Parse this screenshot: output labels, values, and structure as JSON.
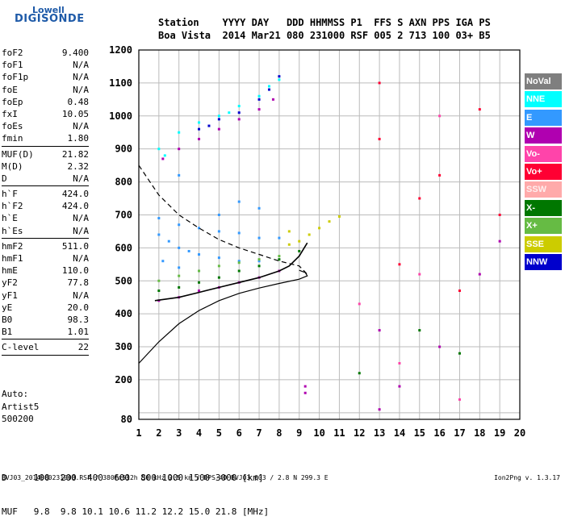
{
  "logo": {
    "line1": "Lowell",
    "line2": "DIGISONDE"
  },
  "header": {
    "labels": "Station    YYYY DAY   DDD HHMMSS P1  FFS S AXN PPS IGA PS",
    "values": "Boa Vista  2014 Mar21 080 231000 RSF 005 2 713 100 03+ B5"
  },
  "params": [
    {
      "k": "foF2",
      "v": "9.400"
    },
    {
      "k": "foF1",
      "v": "N/A"
    },
    {
      "k": "foF1p",
      "v": "N/A"
    },
    {
      "k": "foE",
      "v": "N/A"
    },
    {
      "k": "foEp",
      "v": "0.48"
    },
    {
      "k": "fxI",
      "v": "10.05"
    },
    {
      "k": "foEs",
      "v": "N/A"
    },
    {
      "k": "fmin",
      "v": "1.80"
    },
    {
      "sep": true
    },
    {
      "k": "MUF(D)",
      "v": "21.82"
    },
    {
      "k": "M(D)",
      "v": "2.32"
    },
    {
      "k": "D",
      "v": "N/A"
    },
    {
      "sep": true
    },
    {
      "k": "h`F",
      "v": "424.0"
    },
    {
      "k": "h`F2",
      "v": "424.0"
    },
    {
      "k": "h`E",
      "v": "N/A"
    },
    {
      "k": "h`Es",
      "v": "N/A"
    },
    {
      "sep": true
    },
    {
      "k": "hmF2",
      "v": "511.0"
    },
    {
      "k": "hmF1",
      "v": "N/A"
    },
    {
      "k": "hmE",
      "v": "110.0"
    },
    {
      "k": "yF2",
      "v": "77.8"
    },
    {
      "k": "yF1",
      "v": "N/A"
    },
    {
      "k": "yE",
      "v": "20.0"
    },
    {
      "k": "B0",
      "v": "98.3"
    },
    {
      "k": "B1",
      "v": "1.01"
    },
    {
      "sep": true
    },
    {
      "k": "C-level",
      "v": "22"
    },
    {
      "sep": true
    }
  ],
  "auto": {
    "line1": "Auto:",
    "line2": "Artist5",
    "line3": "500200"
  },
  "legend": [
    {
      "label": "NoVal",
      "color": "#7f7f7f"
    },
    {
      "label": "NNE",
      "color": "#00ffff"
    },
    {
      "label": "E",
      "color": "#3399ff"
    },
    {
      "label": "W",
      "color": "#b000b0"
    },
    {
      "label": "Vo-",
      "color": "#ff44aa"
    },
    {
      "label": "Vo+",
      "color": "#ff0033"
    },
    {
      "label": "SSW",
      "color": "#ffaaaa"
    },
    {
      "label": "X-",
      "color": "#007700"
    },
    {
      "label": "X+",
      "color": "#66bb44"
    },
    {
      "label": "SSE",
      "color": "#cccc00"
    },
    {
      "label": "NNW",
      "color": "#0000cc"
    }
  ],
  "bottom": {
    "line1": "D     100  200  400  600  800 1000 1500 3000 [km]",
    "line2": "MUF   9.8  9.8 10.1 10.6 11.2 12.2 15.0 21.8 [MHz]"
  },
  "footer": {
    "left": "BVJ03_2014080231000.RSF / 380fx512h 50 kHz 2.5 km / DPS-4D BVJ03 003 / 2.8 N 299.3 E",
    "right": "Ion2Png v. 1.3.17"
  },
  "chart_data": {
    "type": "scatter",
    "xlim": [
      1,
      20
    ],
    "ylim": [
      80,
      1200
    ],
    "xticks": [
      1,
      2,
      3,
      4,
      5,
      6,
      7,
      8,
      9,
      10,
      11,
      12,
      13,
      14,
      15,
      16,
      17,
      18,
      19,
      20
    ],
    "yticks": [
      80,
      100,
      200,
      300,
      400,
      500,
      600,
      700,
      800,
      900,
      1000,
      1100,
      1200
    ],
    "ytick_labels": [
      "80",
      "",
      "200",
      "300",
      "400",
      "500",
      "600",
      "700",
      "800",
      "900",
      "1000",
      "1100",
      "1200"
    ],
    "grid": true,
    "legend_position": "right",
    "profile_solid": [
      [
        1,
        250
      ],
      [
        2,
        315
      ],
      [
        3,
        370
      ],
      [
        4,
        410
      ],
      [
        5,
        440
      ],
      [
        6,
        462
      ],
      [
        7,
        478
      ],
      [
        8,
        492
      ],
      [
        9,
        505
      ],
      [
        9.4,
        515
      ],
      [
        9.3,
        525
      ],
      [
        9,
        532
      ]
    ],
    "profile_dashed": [
      [
        1,
        850
      ],
      [
        2,
        760
      ],
      [
        3,
        700
      ],
      [
        4,
        660
      ],
      [
        5,
        625
      ],
      [
        6,
        600
      ],
      [
        7,
        580
      ],
      [
        8,
        560
      ],
      [
        9,
        545
      ],
      [
        9.4,
        520
      ]
    ],
    "trace_ordinary": [
      [
        1.8,
        440
      ],
      [
        3,
        450
      ],
      [
        4,
        465
      ],
      [
        5,
        480
      ],
      [
        6,
        495
      ],
      [
        7,
        510
      ],
      [
        8,
        530
      ],
      [
        8.5,
        545
      ],
      [
        9,
        575
      ],
      [
        9.4,
        615
      ]
    ],
    "series": [
      {
        "name": "NNE",
        "color": "#00ffff",
        "points": [
          [
            2,
            900
          ],
          [
            3,
            950
          ],
          [
            4,
            980
          ],
          [
            5,
            1000
          ],
          [
            6,
            1030
          ],
          [
            7,
            1060
          ],
          [
            7.5,
            1090
          ],
          [
            8,
            1110
          ],
          [
            2.3,
            880
          ],
          [
            5.5,
            1010
          ]
        ]
      },
      {
        "name": "E",
        "color": "#3399ff",
        "points": [
          [
            2,
            640
          ],
          [
            2.5,
            620
          ],
          [
            3,
            600
          ],
          [
            3.5,
            590
          ],
          [
            4,
            580
          ],
          [
            5,
            570
          ],
          [
            6,
            560
          ],
          [
            7,
            560
          ],
          [
            2,
            690
          ],
          [
            3,
            670
          ],
          [
            4,
            660
          ],
          [
            5,
            650
          ],
          [
            6,
            645
          ],
          [
            7,
            630
          ],
          [
            8,
            630
          ],
          [
            2.2,
            560
          ],
          [
            3,
            540
          ],
          [
            4,
            530
          ],
          [
            6,
            740
          ],
          [
            7,
            720
          ],
          [
            5,
            700
          ],
          [
            3,
            820
          ]
        ]
      },
      {
        "name": "W",
        "color": "#b000b0",
        "points": [
          [
            2,
            440
          ],
          [
            3,
            450
          ],
          [
            4,
            470
          ],
          [
            5,
            480
          ],
          [
            6,
            495
          ],
          [
            7,
            510
          ],
          [
            8,
            530
          ],
          [
            2.2,
            870
          ],
          [
            3,
            900
          ],
          [
            4,
            930
          ],
          [
            5,
            960
          ],
          [
            6,
            990
          ],
          [
            7,
            1020
          ],
          [
            7.7,
            1050
          ],
          [
            9.3,
            180
          ],
          [
            9.3,
            160
          ],
          [
            13,
            110
          ],
          [
            14,
            180
          ],
          [
            16,
            300
          ],
          [
            18,
            520
          ],
          [
            19,
            620
          ],
          [
            13,
            350
          ]
        ]
      },
      {
        "name": "Vo-",
        "color": "#ff44aa",
        "points": [
          [
            12,
            430
          ],
          [
            14,
            250
          ],
          [
            15,
            520
          ],
          [
            17,
            140
          ],
          [
            16,
            1000
          ]
        ]
      },
      {
        "name": "Vo+",
        "color": "#ff0033",
        "points": [
          [
            14,
            550
          ],
          [
            15,
            750
          ],
          [
            13,
            1100
          ],
          [
            17,
            470
          ],
          [
            18,
            1020
          ],
          [
            19,
            700
          ],
          [
            13,
            930
          ],
          [
            16,
            820
          ]
        ]
      },
      {
        "name": "X-",
        "color": "#007700",
        "points": [
          [
            2,
            470
          ],
          [
            3,
            480
          ],
          [
            4,
            495
          ],
          [
            5,
            510
          ],
          [
            6,
            530
          ],
          [
            7,
            545
          ],
          [
            8,
            565
          ],
          [
            9,
            590
          ],
          [
            12,
            220
          ],
          [
            15,
            350
          ],
          [
            17,
            280
          ]
        ]
      },
      {
        "name": "X+",
        "color": "#66bb44",
        "points": [
          [
            2,
            500
          ],
          [
            3,
            515
          ],
          [
            4,
            530
          ],
          [
            5,
            545
          ],
          [
            6,
            555
          ],
          [
            7,
            565
          ],
          [
            8,
            575
          ]
        ]
      },
      {
        "name": "SSE",
        "color": "#cccc00",
        "points": [
          [
            8.5,
            610
          ],
          [
            9,
            620
          ],
          [
            9.5,
            640
          ],
          [
            10,
            660
          ],
          [
            10.5,
            680
          ],
          [
            11,
            695
          ],
          [
            8.5,
            650
          ]
        ]
      },
      {
        "name": "NNW",
        "color": "#0000cc",
        "points": [
          [
            4,
            960
          ],
          [
            5,
            990
          ],
          [
            6,
            1010
          ],
          [
            7,
            1050
          ],
          [
            7.5,
            1080
          ],
          [
            8,
            1120
          ],
          [
            4.5,
            970
          ]
        ]
      }
    ]
  }
}
